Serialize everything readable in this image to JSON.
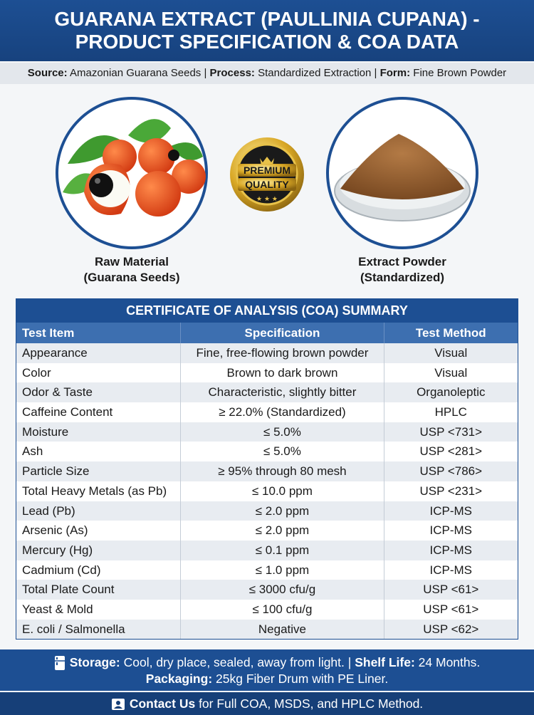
{
  "header": {
    "title_line1": "GUARANA EXTRACT (PAULLINIA CUPANA) -",
    "title_line2": "PRODUCT SPECIFICATION & COA DATA"
  },
  "subheader": {
    "items": [
      {
        "label": "Source:",
        "value": "Amazonian Guarana Seeds"
      },
      {
        "label": "Process:",
        "value": "Standardized Extraction"
      },
      {
        "label": "Form:",
        "value": "Fine Brown Powder"
      }
    ],
    "separator": "|"
  },
  "images": {
    "left_caption": [
      "Raw Material",
      "(Guarana Seeds)"
    ],
    "badge": [
      "PREMIUM",
      "QUALITY"
    ],
    "right_caption": [
      "Extract Powder",
      "(Standardized)"
    ]
  },
  "table": {
    "title": "CERTIFICATE OF ANALYSIS (COA) SUMMARY",
    "columns": [
      "Test Item",
      "Specification",
      "Test Method"
    ],
    "rows": [
      [
        "Appearance",
        "Fine, free-flowing brown powder",
        "Visual"
      ],
      [
        "Color",
        "Brown to dark brown",
        "Visual"
      ],
      [
        "Odor & Taste",
        "Characteristic, slightly bitter",
        "Organoleptic"
      ],
      [
        "Caffeine Content",
        "≥ 22.0% (Standardized)",
        "HPLC"
      ],
      [
        "Moisture",
        "≤ 5.0%",
        "USP <731>"
      ],
      [
        "Ash",
        "≤ 5.0%",
        "USP <281>"
      ],
      [
        "Particle Size",
        "≥ 95% through 80 mesh",
        "USP <786>"
      ],
      [
        "Total Heavy Metals (as Pb)",
        "≤ 10.0 ppm",
        "USP <231>"
      ],
      [
        "Lead (Pb)",
        "≤ 2.0 ppm",
        "ICP-MS"
      ],
      [
        "Arsenic (As)",
        "≤ 2.0 ppm",
        "ICP-MS"
      ],
      [
        "Mercury (Hg)",
        "≤ 0.1 ppm",
        "ICP-MS"
      ],
      [
        "Cadmium (Cd)",
        "≤ 1.0 ppm",
        "ICP-MS"
      ],
      [
        "Total Plate Count",
        "≤ 3000 cfu/g",
        "USP <61>"
      ],
      [
        "Yeast & Mold",
        "≤ 100 cfu/g",
        "USP <61>"
      ],
      [
        "E. coli / Salmonella",
        "Negative",
        "USP <62>"
      ]
    ]
  },
  "footer": {
    "storage_label": "Storage:",
    "storage_value": "Cool, dry place, sealed, away from light.",
    "separator": "|",
    "shelf_label": "Shelf Life:",
    "shelf_value": "24 Months.",
    "packaging_label": "Packaging:",
    "packaging_value": "25kg Fiber Drum with PE Liner.",
    "contact_label": "Contact Us",
    "contact_value": "for Full COA, MSDS, and HPLC Method."
  }
}
